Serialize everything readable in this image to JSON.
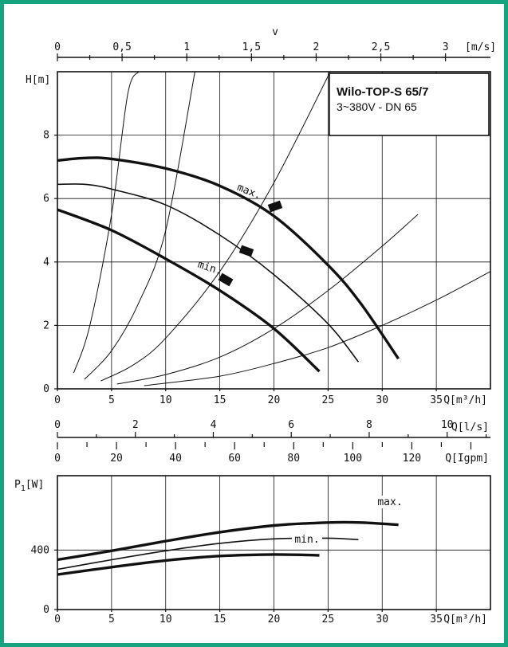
{
  "colors": {
    "frame": "#16a37f",
    "ink": "#111111"
  },
  "chart_data": [
    {
      "type": "line",
      "id": "head-curve",
      "title_line1": "Wilo-TOP-S 65/7",
      "title_line2": "3~380V - DN 65",
      "ylabel": "H[m]",
      "xlabel": "Q[m³/h]",
      "xlim": [
        0,
        40
      ],
      "ylim": [
        0,
        10
      ],
      "x_ticks": [
        "0",
        "5",
        "10",
        "15",
        "20",
        "25",
        "30",
        "35"
      ],
      "y_ticks": [
        "0",
        "2",
        "4",
        "6",
        "8"
      ],
      "top_axis": {
        "label": "v",
        "unit": "[m/s]",
        "ticks": [
          "0",
          "0,5",
          "1",
          "1,5",
          "2",
          "2,5",
          "3"
        ],
        "q_per_unit": 11.95
      },
      "annotations": [
        "max.",
        "min."
      ],
      "series": [
        {
          "x": [
            0,
            2.5,
            5,
            10,
            15,
            20,
            25,
            28,
            31.5
          ],
          "y": [
            7.2,
            7.28,
            7.25,
            6.95,
            6.4,
            5.45,
            3.9,
            2.7,
            0.95
          ]
        },
        {
          "x": [
            0,
            2.5,
            5,
            10,
            15,
            20,
            25,
            27.8
          ],
          "y": [
            6.45,
            6.45,
            6.3,
            5.8,
            4.85,
            3.6,
            2.05,
            0.85
          ]
        },
        {
          "x": [
            0,
            5,
            10,
            15,
            20,
            24.2
          ],
          "y": [
            5.65,
            5.0,
            4.1,
            3.1,
            1.9,
            0.55
          ]
        }
      ],
      "system_curves": [
        {
          "x": [
            1.5,
            3,
            5,
            6.5,
            7.5
          ],
          "y": [
            0.5,
            2,
            5.5,
            9.3,
            10
          ]
        },
        {
          "x": [
            2.5,
            5,
            7.5,
            10,
            12.7
          ],
          "y": [
            0.3,
            1.2,
            2.7,
            5,
            10
          ]
        },
        {
          "x": [
            4,
            7,
            10,
            15,
            20,
            25.2
          ],
          "y": [
            0.25,
            0.75,
            1.6,
            3.7,
            6.5,
            10
          ]
        },
        {
          "x": [
            5.5,
            10,
            15,
            20,
            25,
            30,
            33.3
          ],
          "y": [
            0.15,
            0.45,
            1.0,
            1.9,
            3.1,
            4.5,
            5.5
          ]
        },
        {
          "x": [
            8,
            15,
            20,
            25,
            30,
            35,
            40
          ],
          "y": [
            0.1,
            0.4,
            0.8,
            1.3,
            2.0,
            2.8,
            3.7
          ]
        }
      ]
    },
    {
      "type": "line",
      "id": "flow-scales",
      "ls_axis": {
        "label": "Q[l/s]",
        "ticks": [
          "0",
          "2",
          "4",
          "6",
          "8",
          "10"
        ]
      },
      "gpm_axis": {
        "label": "Q[Igpm]",
        "ticks": [
          "0",
          "20",
          "40",
          "60",
          "80",
          "100",
          "120"
        ]
      }
    },
    {
      "type": "line",
      "id": "power-curve",
      "ylabel": "P",
      "ylabel_sub": "1",
      "ylabel_unit": "[W]",
      "xlabel": "Q[m³/h]",
      "xlim": [
        0,
        40
      ],
      "ylim": [
        0,
        900
      ],
      "x_ticks": [
        "0",
        "5",
        "10",
        "15",
        "20",
        "25",
        "30",
        "35"
      ],
      "y_ticks": [
        "0",
        "400"
      ],
      "annotations": [
        "max.",
        "min."
      ],
      "series": [
        {
          "x": [
            0,
            5,
            10,
            15,
            20,
            25,
            28,
            31.5
          ],
          "y": [
            335,
            395,
            460,
            520,
            565,
            585,
            585,
            570
          ]
        },
        {
          "x": [
            0,
            5,
            10,
            15,
            20,
            25,
            27.8
          ],
          "y": [
            270,
            335,
            395,
            445,
            475,
            480,
            470
          ]
        },
        {
          "x": [
            0,
            5,
            10,
            15,
            20,
            24.2
          ],
          "y": [
            235,
            285,
            330,
            360,
            370,
            365
          ]
        }
      ]
    }
  ]
}
